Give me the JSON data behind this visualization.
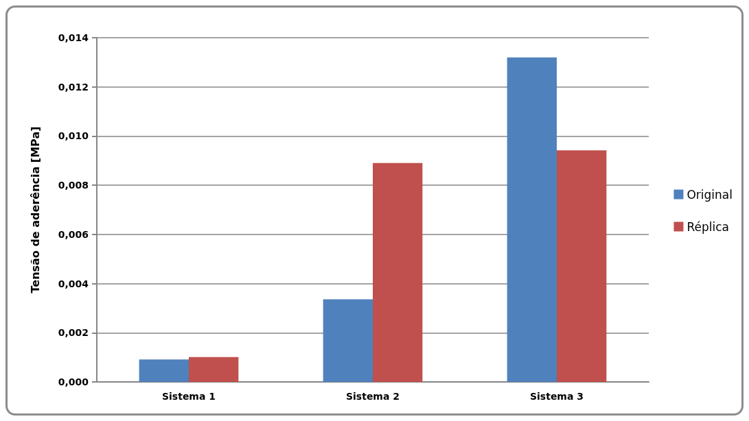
{
  "chart_data": {
    "type": "bar",
    "ylabel": "Tensão de aderência [MPa]",
    "categories": [
      "Sistema 1",
      "Sistema 2",
      "Sistema 3"
    ],
    "series": [
      {
        "name": "Original",
        "color": "#4f81bd",
        "values": [
          0.00091,
          0.00336,
          0.0132
        ]
      },
      {
        "name": "Réplica",
        "color": "#c0504d",
        "values": [
          0.00101,
          0.0089,
          0.00942
        ]
      }
    ],
    "ylim": [
      0,
      0.014
    ],
    "yticks": [
      {
        "value": 0,
        "label": "0,000"
      },
      {
        "value": 0.002,
        "label": "0,002"
      },
      {
        "value": 0.004,
        "label": "0,004"
      },
      {
        "value": 0.006,
        "label": "0,006"
      },
      {
        "value": 0.008,
        "label": "0,008"
      },
      {
        "value": 0.01,
        "label": "0,010"
      },
      {
        "value": 0.012,
        "label": "0,012"
      },
      {
        "value": 0.014,
        "label": "0,014"
      }
    ],
    "grid": "y",
    "legend": "right"
  }
}
